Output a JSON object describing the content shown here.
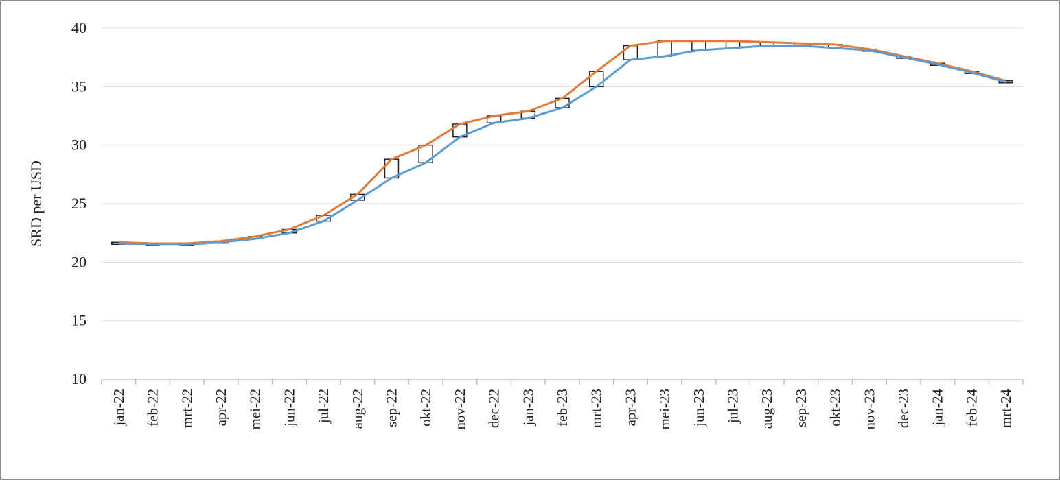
{
  "chart_data": {
    "type": "line",
    "ylabel": "SRD per USD",
    "xlabel": "",
    "ylim": [
      10,
      40
    ],
    "yticks": [
      10,
      15,
      20,
      25,
      30,
      35,
      40
    ],
    "grid": true,
    "categories": [
      "jan-22",
      "feb-22",
      "mrt-22",
      "apr-22",
      "mei-22",
      "jun-22",
      "jul-22",
      "aug-22",
      "sep-22",
      "okt-22",
      "nov-22",
      "dec-22",
      "jan-23",
      "feb-23",
      "mrt-23",
      "apr-23",
      "mei-23",
      "jun-23",
      "jul-23",
      "aug-23",
      "sep-23",
      "okt-23",
      "nov-23",
      "dec-23",
      "jan-24",
      "feb-24",
      "mrt-24"
    ],
    "series": [
      {
        "color": "#e07b39",
        "values": [
          21.7,
          21.6,
          21.6,
          21.8,
          22.2,
          22.8,
          24.0,
          25.8,
          28.8,
          30.0,
          31.8,
          32.5,
          32.9,
          34.0,
          36.3,
          38.5,
          38.9,
          38.9,
          38.9,
          38.8,
          38.7,
          38.6,
          38.2,
          37.6,
          37.0,
          36.3,
          35.5
        ]
      },
      {
        "color": "#5b9bd5",
        "values": [
          21.6,
          21.5,
          21.5,
          21.7,
          22.0,
          22.5,
          23.5,
          25.3,
          27.2,
          28.5,
          30.7,
          31.9,
          32.3,
          33.2,
          35.0,
          37.3,
          37.6,
          38.1,
          38.3,
          38.5,
          38.5,
          38.3,
          38.1,
          37.5,
          36.9,
          36.2,
          35.4
        ]
      }
    ]
  }
}
